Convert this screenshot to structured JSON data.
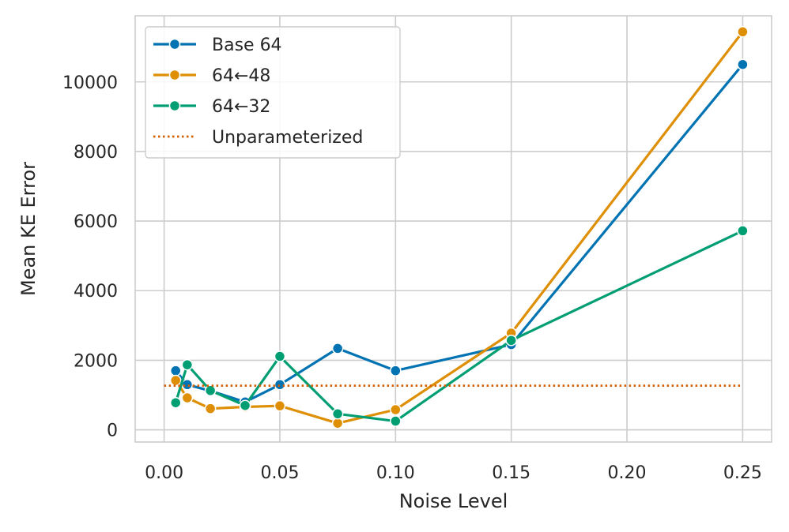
{
  "chart_data": {
    "type": "line",
    "title": "",
    "xlabel": "Noise Level",
    "ylabel": "Mean KE Error",
    "xlim": [
      -0.0125,
      0.2625
    ],
    "ylim": [
      -350,
      11900
    ],
    "xticks": [
      0.0,
      0.05,
      0.1,
      0.15,
      0.2,
      0.25
    ],
    "xtick_labels": [
      "0.00",
      "0.05",
      "0.10",
      "0.15",
      "0.20",
      "0.25"
    ],
    "yticks": [
      0,
      2000,
      4000,
      6000,
      8000,
      10000
    ],
    "ytick_labels": [
      "0",
      "2000",
      "4000",
      "6000",
      "8000",
      "10000"
    ],
    "grid": true,
    "legend_position": "top-left",
    "series": [
      {
        "name": "Base 64",
        "color": "#0173b2",
        "style": "solid-marker",
        "x": [
          0.005,
          0.01,
          0.02,
          0.035,
          0.05,
          0.075,
          0.1,
          0.15,
          0.25
        ],
        "y": [
          1700,
          1300,
          1120,
          800,
          1300,
          2340,
          1700,
          2450,
          10500
        ]
      },
      {
        "name": "64←48",
        "color": "#de8f05",
        "style": "solid-marker",
        "x": [
          0.005,
          0.01,
          0.02,
          0.035,
          0.05,
          0.075,
          0.1,
          0.15,
          0.25
        ],
        "y": [
          1420,
          920,
          610,
          660,
          690,
          190,
          580,
          2780,
          11440
        ]
      },
      {
        "name": "64←32",
        "color": "#029e73",
        "style": "solid-marker",
        "x": [
          0.005,
          0.01,
          0.02,
          0.035,
          0.05,
          0.075,
          0.1,
          0.15,
          0.25
        ],
        "y": [
          780,
          1870,
          1130,
          700,
          2110,
          460,
          250,
          2570,
          5720
        ]
      },
      {
        "name": "Unparameterized",
        "color": "#d55e00",
        "style": "dotted",
        "x": [
          0.0,
          0.25
        ],
        "y": [
          1270,
          1270
        ]
      }
    ]
  }
}
